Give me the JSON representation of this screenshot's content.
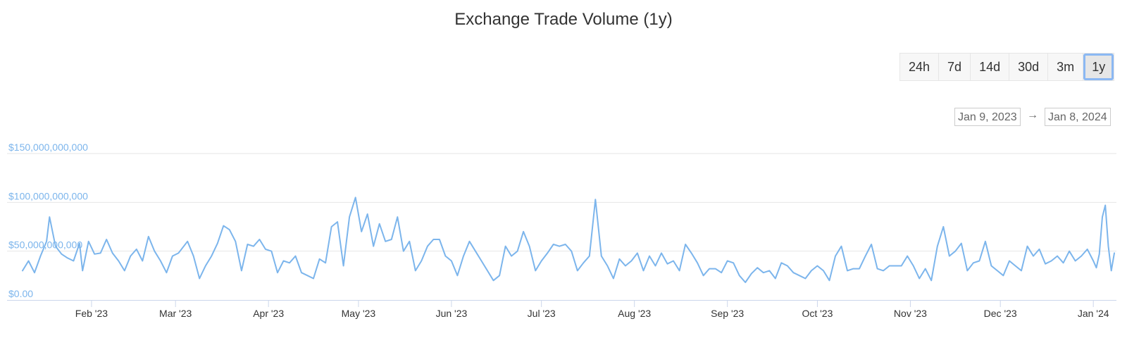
{
  "page": {
    "title": "Exchange Trade Volume (1y)",
    "ranges": [
      "24h",
      "7d",
      "14d",
      "30d",
      "3m",
      "1y"
    ],
    "active_range": "1y",
    "date_from": "Jan 9, 2023",
    "date_to": "Jan 8, 2024",
    "date_arrow": "→"
  },
  "colors": {
    "line": "#7cb5ec",
    "axis_label": "#7cb5ec",
    "grid": "#e6e6e6",
    "axis_line": "#ccd6eb"
  },
  "chart_data": {
    "type": "line",
    "title": "Exchange Trade Volume (1y)",
    "xlabel": "",
    "ylabel": "",
    "x_range": [
      "2023-01-09",
      "2024-01-08"
    ],
    "ylim": [
      0,
      150000000000
    ],
    "y_ticks": [
      0,
      50000000000,
      100000000000,
      150000000000
    ],
    "y_tick_labels": [
      "$0.00",
      "$50,000,000,000",
      "$100,000,000,000",
      "$150,000,000,000"
    ],
    "x_ticks": [
      "2023-02-01",
      "2023-03-01",
      "2023-04-01",
      "2023-05-01",
      "2023-06-01",
      "2023-07-01",
      "2023-08-01",
      "2023-09-01",
      "2023-10-01",
      "2023-11-01",
      "2023-12-01",
      "2024-01-01"
    ],
    "x_tick_labels": [
      "Feb '23",
      "Mar '23",
      "Apr '23",
      "May '23",
      "Jun '23",
      "Jul '23",
      "Aug '23",
      "Sep '23",
      "Oct '23",
      "Nov '23",
      "Dec '23",
      "Jan '24"
    ],
    "grid": true,
    "legend": "none",
    "series": [
      {
        "points": [
          [
            "2023-01-09",
            30000000000
          ],
          [
            "2023-01-11",
            40000000000
          ],
          [
            "2023-01-13",
            28000000000
          ],
          [
            "2023-01-15",
            45000000000
          ],
          [
            "2023-01-17",
            60000000000
          ],
          [
            "2023-01-18",
            85000000000
          ],
          [
            "2023-01-20",
            55000000000
          ],
          [
            "2023-01-22",
            47000000000
          ],
          [
            "2023-01-24",
            43000000000
          ],
          [
            "2023-01-26",
            40000000000
          ],
          [
            "2023-01-28",
            58000000000
          ],
          [
            "2023-01-29",
            30000000000
          ],
          [
            "2023-01-31",
            60000000000
          ],
          [
            "2023-02-02",
            47000000000
          ],
          [
            "2023-02-04",
            48000000000
          ],
          [
            "2023-02-06",
            62000000000
          ],
          [
            "2023-02-08",
            48000000000
          ],
          [
            "2023-02-10",
            40000000000
          ],
          [
            "2023-02-12",
            30000000000
          ],
          [
            "2023-02-14",
            45000000000
          ],
          [
            "2023-02-16",
            52000000000
          ],
          [
            "2023-02-18",
            40000000000
          ],
          [
            "2023-02-20",
            65000000000
          ],
          [
            "2023-02-22",
            50000000000
          ],
          [
            "2023-02-24",
            40000000000
          ],
          [
            "2023-02-26",
            28000000000
          ],
          [
            "2023-02-28",
            45000000000
          ],
          [
            "2023-03-02",
            48000000000
          ],
          [
            "2023-03-05",
            60000000000
          ],
          [
            "2023-03-07",
            45000000000
          ],
          [
            "2023-03-09",
            22000000000
          ],
          [
            "2023-03-11",
            35000000000
          ],
          [
            "2023-03-13",
            45000000000
          ],
          [
            "2023-03-15",
            58000000000
          ],
          [
            "2023-03-17",
            76000000000
          ],
          [
            "2023-03-19",
            72000000000
          ],
          [
            "2023-03-21",
            60000000000
          ],
          [
            "2023-03-23",
            30000000000
          ],
          [
            "2023-03-25",
            57000000000
          ],
          [
            "2023-03-27",
            55000000000
          ],
          [
            "2023-03-29",
            62000000000
          ],
          [
            "2023-03-31",
            52000000000
          ],
          [
            "2023-04-02",
            50000000000
          ],
          [
            "2023-04-04",
            28000000000
          ],
          [
            "2023-04-06",
            40000000000
          ],
          [
            "2023-04-08",
            38000000000
          ],
          [
            "2023-04-10",
            45000000000
          ],
          [
            "2023-04-12",
            28000000000
          ],
          [
            "2023-04-14",
            25000000000
          ],
          [
            "2023-04-16",
            22000000000
          ],
          [
            "2023-04-18",
            42000000000
          ],
          [
            "2023-04-20",
            38000000000
          ],
          [
            "2023-04-22",
            75000000000
          ],
          [
            "2023-04-24",
            80000000000
          ],
          [
            "2023-04-26",
            35000000000
          ],
          [
            "2023-04-28",
            85000000000
          ],
          [
            "2023-04-30",
            105000000000
          ],
          [
            "2023-05-02",
            70000000000
          ],
          [
            "2023-05-04",
            88000000000
          ],
          [
            "2023-05-06",
            55000000000
          ],
          [
            "2023-05-08",
            78000000000
          ],
          [
            "2023-05-10",
            60000000000
          ],
          [
            "2023-05-12",
            62000000000
          ],
          [
            "2023-05-14",
            85000000000
          ],
          [
            "2023-05-16",
            50000000000
          ],
          [
            "2023-05-18",
            60000000000
          ],
          [
            "2023-05-20",
            30000000000
          ],
          [
            "2023-05-22",
            40000000000
          ],
          [
            "2023-05-24",
            55000000000
          ],
          [
            "2023-05-26",
            62000000000
          ],
          [
            "2023-05-28",
            62000000000
          ],
          [
            "2023-05-30",
            45000000000
          ],
          [
            "2023-06-01",
            40000000000
          ],
          [
            "2023-06-03",
            25000000000
          ],
          [
            "2023-06-05",
            45000000000
          ],
          [
            "2023-06-07",
            60000000000
          ],
          [
            "2023-06-09",
            50000000000
          ],
          [
            "2023-06-11",
            40000000000
          ],
          [
            "2023-06-13",
            30000000000
          ],
          [
            "2023-06-15",
            20000000000
          ],
          [
            "2023-06-17",
            25000000000
          ],
          [
            "2023-06-19",
            55000000000
          ],
          [
            "2023-06-21",
            45000000000
          ],
          [
            "2023-06-23",
            50000000000
          ],
          [
            "2023-06-25",
            70000000000
          ],
          [
            "2023-06-27",
            55000000000
          ],
          [
            "2023-06-29",
            30000000000
          ],
          [
            "2023-07-01",
            40000000000
          ],
          [
            "2023-07-03",
            48000000000
          ],
          [
            "2023-07-05",
            57000000000
          ],
          [
            "2023-07-07",
            55000000000
          ],
          [
            "2023-07-09",
            57000000000
          ],
          [
            "2023-07-11",
            50000000000
          ],
          [
            "2023-07-13",
            30000000000
          ],
          [
            "2023-07-15",
            38000000000
          ],
          [
            "2023-07-17",
            45000000000
          ],
          [
            "2023-07-19",
            103000000000
          ],
          [
            "2023-07-21",
            45000000000
          ],
          [
            "2023-07-23",
            35000000000
          ],
          [
            "2023-07-25",
            22000000000
          ],
          [
            "2023-07-27",
            42000000000
          ],
          [
            "2023-07-29",
            35000000000
          ],
          [
            "2023-07-31",
            40000000000
          ],
          [
            "2023-08-02",
            48000000000
          ],
          [
            "2023-08-04",
            30000000000
          ],
          [
            "2023-08-06",
            45000000000
          ],
          [
            "2023-08-08",
            35000000000
          ],
          [
            "2023-08-10",
            48000000000
          ],
          [
            "2023-08-12",
            37000000000
          ],
          [
            "2023-08-14",
            40000000000
          ],
          [
            "2023-08-16",
            30000000000
          ],
          [
            "2023-08-18",
            57000000000
          ],
          [
            "2023-08-20",
            48000000000
          ],
          [
            "2023-08-22",
            38000000000
          ],
          [
            "2023-08-24",
            25000000000
          ],
          [
            "2023-08-26",
            32000000000
          ],
          [
            "2023-08-28",
            32000000000
          ],
          [
            "2023-08-30",
            28000000000
          ],
          [
            "2023-09-01",
            40000000000
          ],
          [
            "2023-09-03",
            38000000000
          ],
          [
            "2023-09-05",
            25000000000
          ],
          [
            "2023-09-07",
            18000000000
          ],
          [
            "2023-09-09",
            27000000000
          ],
          [
            "2023-09-11",
            33000000000
          ],
          [
            "2023-09-13",
            28000000000
          ],
          [
            "2023-09-15",
            30000000000
          ],
          [
            "2023-09-17",
            22000000000
          ],
          [
            "2023-09-19",
            38000000000
          ],
          [
            "2023-09-21",
            35000000000
          ],
          [
            "2023-09-23",
            28000000000
          ],
          [
            "2023-09-25",
            25000000000
          ],
          [
            "2023-09-27",
            22000000000
          ],
          [
            "2023-09-29",
            30000000000
          ],
          [
            "2023-10-01",
            35000000000
          ],
          [
            "2023-10-03",
            30000000000
          ],
          [
            "2023-10-05",
            20000000000
          ],
          [
            "2023-10-07",
            45000000000
          ],
          [
            "2023-10-09",
            55000000000
          ],
          [
            "2023-10-11",
            30000000000
          ],
          [
            "2023-10-13",
            32000000000
          ],
          [
            "2023-10-15",
            32000000000
          ],
          [
            "2023-10-17",
            45000000000
          ],
          [
            "2023-10-19",
            57000000000
          ],
          [
            "2023-10-21",
            32000000000
          ],
          [
            "2023-10-23",
            30000000000
          ],
          [
            "2023-10-25",
            35000000000
          ],
          [
            "2023-10-27",
            35000000000
          ],
          [
            "2023-10-29",
            35000000000
          ],
          [
            "2023-10-31",
            45000000000
          ],
          [
            "2023-11-02",
            35000000000
          ],
          [
            "2023-11-04",
            22000000000
          ],
          [
            "2023-11-06",
            32000000000
          ],
          [
            "2023-11-08",
            20000000000
          ],
          [
            "2023-11-10",
            55000000000
          ],
          [
            "2023-11-12",
            75000000000
          ],
          [
            "2023-11-14",
            45000000000
          ],
          [
            "2023-11-16",
            50000000000
          ],
          [
            "2023-11-18",
            58000000000
          ],
          [
            "2023-11-20",
            30000000000
          ],
          [
            "2023-11-22",
            38000000000
          ],
          [
            "2023-11-24",
            40000000000
          ],
          [
            "2023-11-26",
            60000000000
          ],
          [
            "2023-11-28",
            35000000000
          ],
          [
            "2023-11-30",
            30000000000
          ],
          [
            "2023-12-02",
            25000000000
          ],
          [
            "2023-12-04",
            40000000000
          ],
          [
            "2023-12-06",
            35000000000
          ],
          [
            "2023-12-08",
            30000000000
          ],
          [
            "2023-12-10",
            55000000000
          ],
          [
            "2023-12-12",
            45000000000
          ],
          [
            "2023-12-14",
            52000000000
          ],
          [
            "2023-12-16",
            37000000000
          ],
          [
            "2023-12-18",
            40000000000
          ],
          [
            "2023-12-20",
            45000000000
          ],
          [
            "2023-12-22",
            38000000000
          ],
          [
            "2023-12-24",
            50000000000
          ],
          [
            "2023-12-26",
            40000000000
          ],
          [
            "2023-12-28",
            45000000000
          ],
          [
            "2023-12-30",
            52000000000
          ],
          [
            "2024-01-01",
            40000000000
          ],
          [
            "2024-01-02",
            33000000000
          ],
          [
            "2024-01-03",
            47000000000
          ],
          [
            "2024-01-04",
            85000000000
          ],
          [
            "2024-01-05",
            97000000000
          ],
          [
            "2024-01-06",
            55000000000
          ],
          [
            "2024-01-07",
            30000000000
          ],
          [
            "2024-01-08",
            48000000000
          ]
        ]
      }
    ]
  }
}
